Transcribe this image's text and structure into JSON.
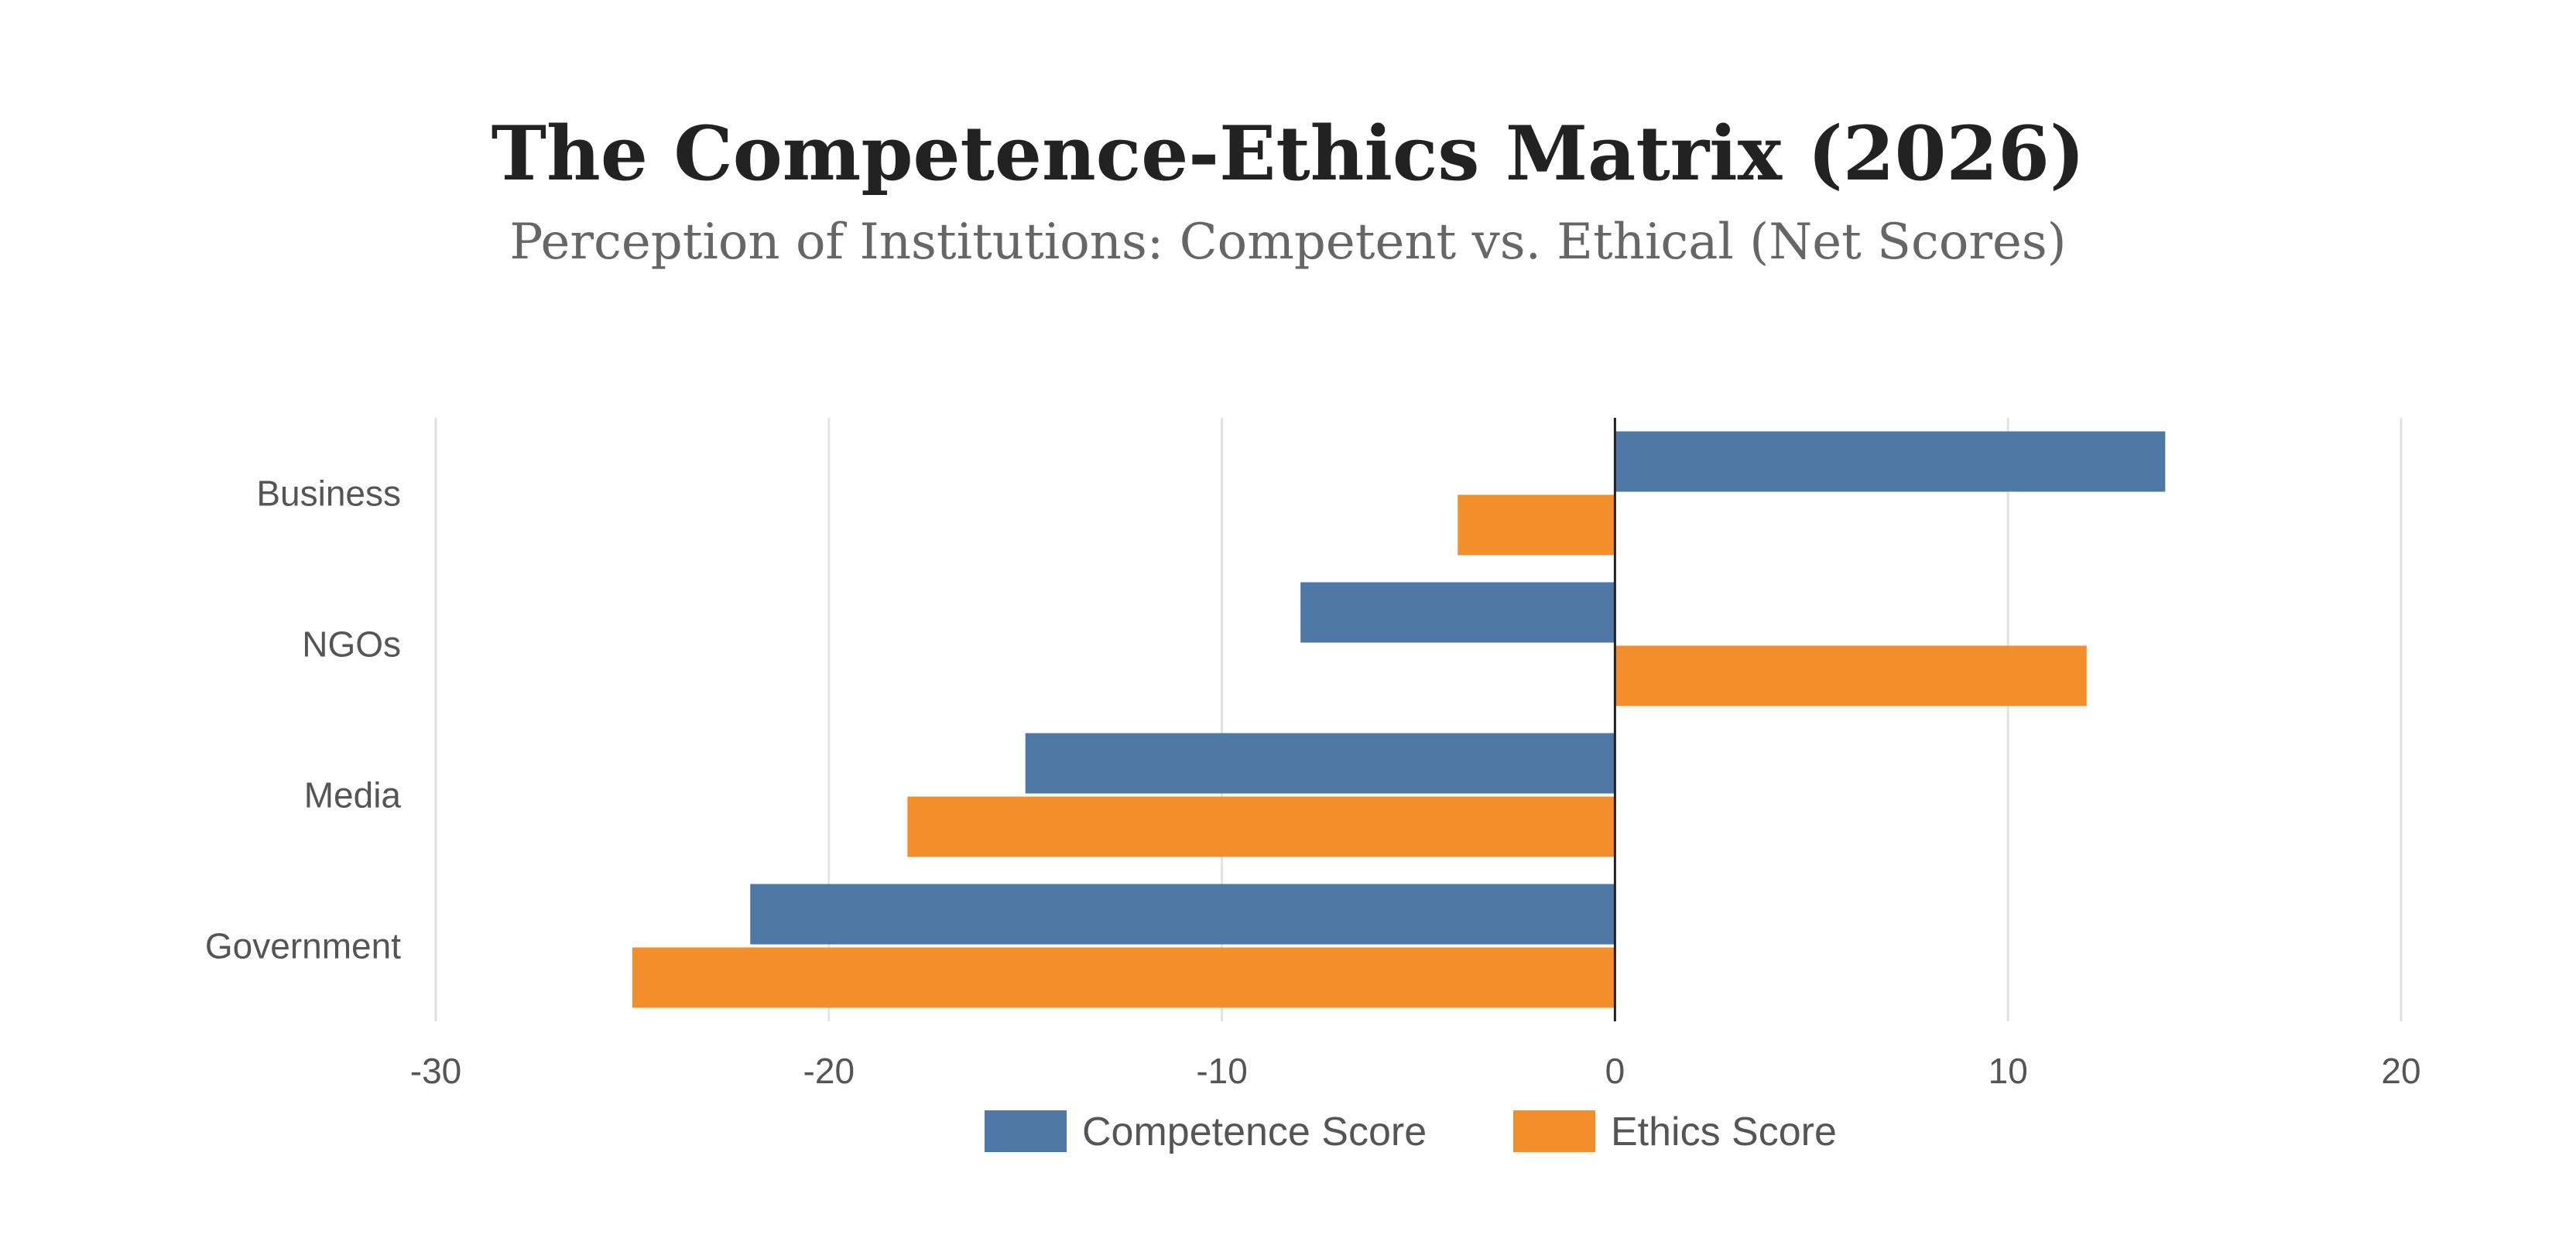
{
  "chart_data": {
    "type": "bar",
    "orientation": "horizontal",
    "title": "The Competence-Ethics Matrix (2026)",
    "subtitle": "Perception of Institutions: Competent vs. Ethical (Net Scores)",
    "categories": [
      "Business",
      "NGOs",
      "Media",
      "Government"
    ],
    "series": [
      {
        "name": "Competence Score",
        "color": "#4e79a7",
        "values": [
          14,
          -8,
          -15,
          -22
        ]
      },
      {
        "name": "Ethics Score",
        "color": "#f28e2b",
        "values": [
          -4,
          12,
          -18,
          -25
        ]
      }
    ],
    "xlim": [
      -30,
      20
    ],
    "xticks": [
      "-30",
      "-20",
      "-10",
      "0",
      "10",
      "20"
    ],
    "xlabel": "",
    "ylabel": "",
    "grid": true,
    "legend": "bottom-center"
  }
}
